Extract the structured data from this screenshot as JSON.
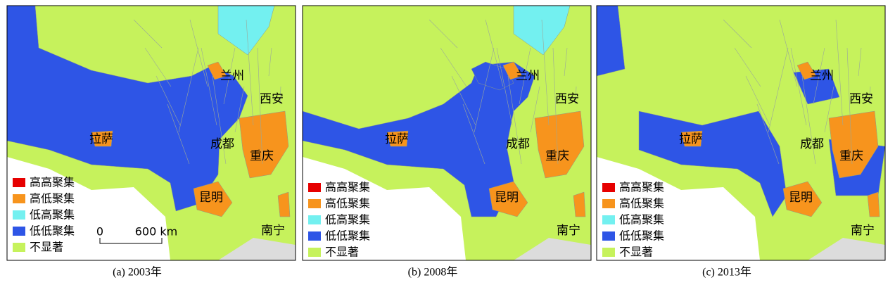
{
  "cities": [
    "兰州",
    "西安",
    "成都",
    "重庆",
    "拉萨",
    "昆明",
    "南宁"
  ],
  "legend": [
    {
      "label": "高高聚集",
      "color": "#e60000"
    },
    {
      "label": "高低聚集",
      "color": "#f7941d"
    },
    {
      "label": "低高聚集",
      "color": "#73f0f0"
    },
    {
      "label": "低低聚集",
      "color": "#2e55e6"
    },
    {
      "label": "不显著",
      "color": "#c6f25c"
    }
  ],
  "panels": [
    {
      "caption": "(a) 2003年",
      "scale": {
        "start": "0",
        "end": "600 km"
      }
    },
    {
      "caption": "(b) 2008年"
    },
    {
      "caption": "(c) 2013年"
    }
  ]
}
